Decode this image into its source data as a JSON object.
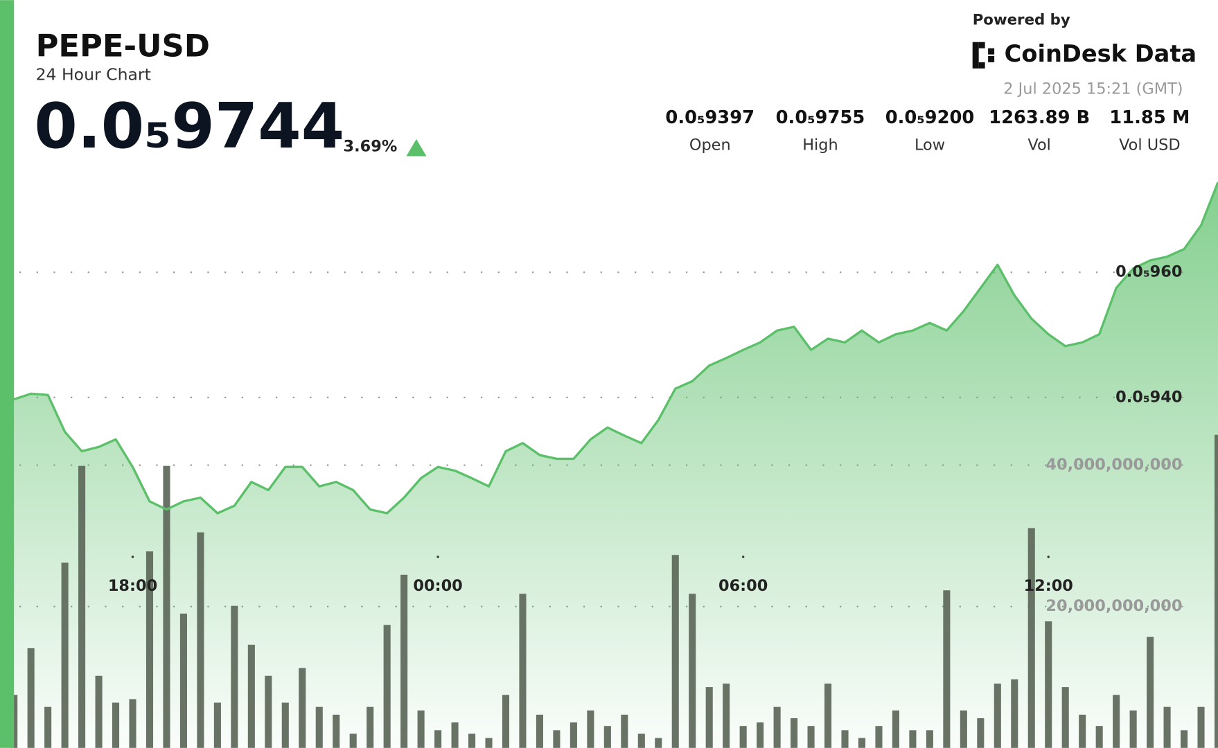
{
  "header": {
    "title": "PEPE-USD",
    "subtitle": "24 Hour Chart",
    "price": "0.0₅9744",
    "change": "3.69%",
    "powered_by": "Powered by",
    "brand": "CoinDesk Data",
    "timestamp": "2 Jul 2025 15:21 (GMT)",
    "stats": [
      {
        "value": "0.0₅9397",
        "label": "Open"
      },
      {
        "value": "0.0₅9755",
        "label": "High"
      },
      {
        "value": "0.0₅9200",
        "label": "Low"
      },
      {
        "value": "1263.89 B",
        "label": "Vol"
      },
      {
        "value": "11.85 M",
        "label": "Vol USD"
      }
    ]
  },
  "chart_data": {
    "type": "line",
    "categories": [
      null,
      null,
      null,
      null,
      null,
      null,
      null,
      "18:00",
      null,
      null,
      null,
      null,
      null,
      null,
      null,
      null,
      null,
      null,
      null,
      null,
      null,
      null,
      null,
      null,
      null,
      "00:00",
      null,
      null,
      null,
      null,
      null,
      null,
      null,
      null,
      null,
      null,
      null,
      null,
      null,
      null,
      null,
      null,
      null,
      "06:00",
      null,
      null,
      null,
      null,
      null,
      null,
      null,
      null,
      null,
      null,
      null,
      null,
      null,
      null,
      null,
      null,
      null,
      "12:00",
      null,
      null,
      null,
      null,
      null,
      null,
      null,
      null,
      null,
      null
    ],
    "series": [
      {
        "type": "line",
        "color": "#5cbf6a",
        "values": [
          9.397e-06,
          9.406e-06,
          9.404e-06,
          9.345e-06,
          9.314e-06,
          9.321e-06,
          9.333e-06,
          9.289e-06,
          9.234e-06,
          9.221e-06,
          9.234e-06,
          9.24e-06,
          9.215e-06,
          9.227e-06,
          9.265e-06,
          9.252e-06,
          9.289e-06,
          9.289e-06,
          9.258e-06,
          9.265e-06,
          9.252e-06,
          9.221e-06,
          9.215e-06,
          9.24e-06,
          9.271e-06,
          9.289e-06,
          9.283e-06,
          9.271e-06,
          9.258e-06,
          9.314e-06,
          9.327e-06,
          9.308e-06,
          9.302e-06,
          9.302e-06,
          9.333e-06,
          9.352e-06,
          9.339e-06,
          9.327e-06,
          9.364e-06,
          9.414e-06,
          9.426e-06,
          9.451e-06,
          9.463e-06,
          9.476e-06,
          9.488e-06,
          9.507e-06,
          9.513e-06,
          9.476e-06,
          9.494e-06,
          9.488e-06,
          9.507e-06,
          9.488e-06,
          9.501e-06,
          9.507e-06,
          9.519e-06,
          9.507e-06,
          9.538e-06,
          9.575e-06,
          9.612e-06,
          9.563e-06,
          9.526e-06,
          9.501e-06,
          9.482e-06,
          9.488e-06,
          9.501e-06,
          9.575e-06,
          9.606e-06,
          9.619e-06,
          9.625e-06,
          9.637e-06,
          9.675e-06,
          9.744e-06
        ]
      },
      {
        "type": "bar",
        "axis": "y2",
        "color": "#606b5d",
        "values": [
          7500000000,
          14100000000,
          5800000000,
          26200000000,
          39900000000,
          10200000000,
          6400000000,
          6900000000,
          27800000000,
          39900000000,
          19000000000,
          30500000000,
          6400000000,
          20100000000,
          14600000000,
          10200000000,
          6400000000,
          11300000000,
          5800000000,
          4700000000,
          2000000000,
          5800000000,
          17400000000,
          24500000000,
          5300000000,
          2500000000,
          3600000000,
          2000000000,
          1400000000,
          7500000000,
          21800000000,
          4700000000,
          2500000000,
          3600000000,
          5300000000,
          3100000000,
          4700000000,
          2000000000,
          1400000000,
          27300000000,
          21800000000,
          8600000000,
          9100000000,
          3100000000,
          3600000000,
          5800000000,
          4200000000,
          3100000000,
          9100000000,
          2500000000,
          1400000000,
          3100000000,
          5300000000,
          2500000000,
          2500000000,
          22300000000,
          5300000000,
          4200000000,
          9100000000,
          9700000000,
          31100000000,
          17900000000,
          8600000000,
          4700000000,
          3100000000,
          7500000000,
          5300000000,
          15700000000,
          5800000000,
          2500000000,
          5800000000,
          44300000000
        ]
      }
    ],
    "ylim": [
      8.84e-06,
      1.0035e-05
    ],
    "yticks": [
      {
        "value": 9.4e-06,
        "label": "0.0₅940"
      },
      {
        "value": 9.6e-06,
        "label": "0.0₅960"
      }
    ],
    "y2lim": [
      0,
      105800000000
    ],
    "y2ticks": [
      {
        "value": 20000000000,
        "label": "20,000,000,000"
      },
      {
        "value": 40000000000,
        "label": "40,000,000,000"
      }
    ],
    "grid": true
  }
}
